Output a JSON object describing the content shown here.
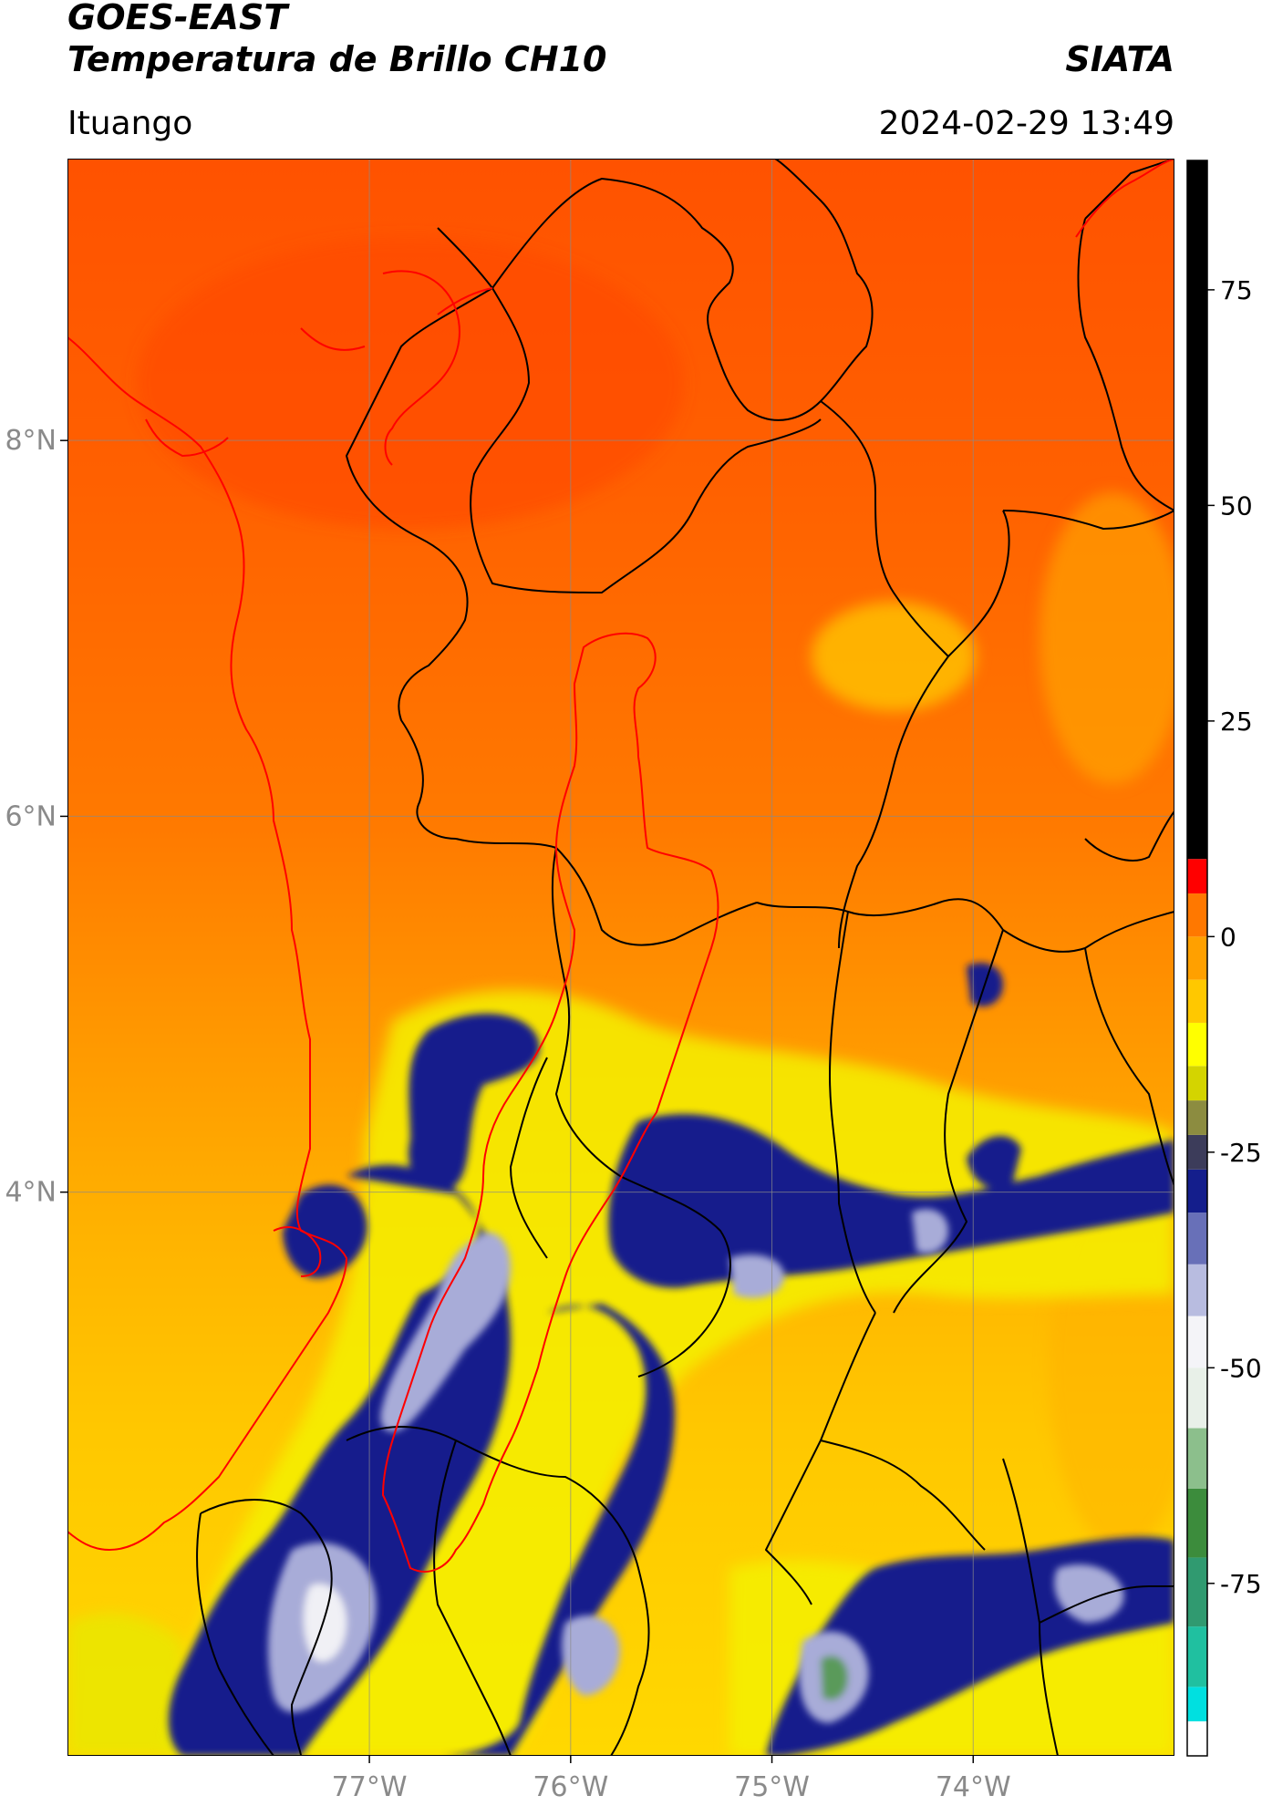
{
  "header": {
    "satellite": "GOES-EAST",
    "product": "Temperatura de Brillo CH10",
    "organization": "SIATA",
    "region": "Ituango",
    "timestamp": "2024-02-29 13:49"
  },
  "map": {
    "lon_range": [
      -78.5,
      -73.0
    ],
    "lat_range": [
      1.0,
      9.5
    ],
    "lon_ticks": [
      {
        "value": -77,
        "label": "77°W"
      },
      {
        "value": -76,
        "label": "76°W"
      },
      {
        "value": -75,
        "label": "75°W"
      },
      {
        "value": -74,
        "label": "74°W"
      }
    ],
    "lat_ticks": [
      {
        "value": 8,
        "label": "8°N"
      },
      {
        "value": 6,
        "label": "6°N"
      },
      {
        "value": 4,
        "label": "4°N"
      }
    ],
    "gridlines": true,
    "colors": {
      "warm_north": "#ff5a00",
      "warm_mid": "#ff8c00",
      "warm_south": "#ffc400",
      "cold_yellow": "#f2f200",
      "cloud_navy": "#141e8c",
      "cloud_lavender": "#a8acd8",
      "cloud_white": "#f0f0f5",
      "cloud_green": "#5a9a5a",
      "admin_borders": "#000000",
      "watershed": "#ff0000",
      "coastline": "#ff0000"
    }
  },
  "colorbar": {
    "range": [
      -95,
      90
    ],
    "ticks": [
      {
        "value": 75,
        "label": "75"
      },
      {
        "value": 50,
        "label": "50"
      },
      {
        "value": 25,
        "label": "25"
      },
      {
        "value": 0,
        "label": "0"
      },
      {
        "value": -25,
        "label": "-25"
      },
      {
        "value": -50,
        "label": "-50"
      },
      {
        "value": -75,
        "label": "-75"
      }
    ],
    "segments": [
      {
        "from": -95,
        "to": -91,
        "color": "#ffffff"
      },
      {
        "from": -91,
        "to": -87,
        "color": "#00e0e0"
      },
      {
        "from": -87,
        "to": -80,
        "color": "#20c0a0"
      },
      {
        "from": -80,
        "to": -72,
        "color": "#309a70"
      },
      {
        "from": -72,
        "to": -64,
        "color": "#3c8c3c"
      },
      {
        "from": -64,
        "to": -57,
        "color": "#8cbf8c"
      },
      {
        "from": -57,
        "to": -50,
        "color": "#e8f0e8"
      },
      {
        "from": -50,
        "to": -44,
        "color": "#f4f4f8"
      },
      {
        "from": -44,
        "to": -38,
        "color": "#b8bce0"
      },
      {
        "from": -38,
        "to": -32,
        "color": "#6870b8"
      },
      {
        "from": -32,
        "to": -27,
        "color": "#141e8c"
      },
      {
        "from": -27,
        "to": -23,
        "color": "#3c3c5a"
      },
      {
        "from": -23,
        "to": -19,
        "color": "#8c8c40"
      },
      {
        "from": -19,
        "to": -15,
        "color": "#d4d400"
      },
      {
        "from": -15,
        "to": -10,
        "color": "#ffff00"
      },
      {
        "from": -10,
        "to": -5,
        "color": "#ffc800"
      },
      {
        "from": -5,
        "to": 0,
        "color": "#ffa000"
      },
      {
        "from": 0,
        "to": 5,
        "color": "#ff7800"
      },
      {
        "from": 5,
        "to": 9,
        "color": "#ff0000"
      },
      {
        "from": 9,
        "to": 90,
        "color": "#000000"
      }
    ]
  }
}
